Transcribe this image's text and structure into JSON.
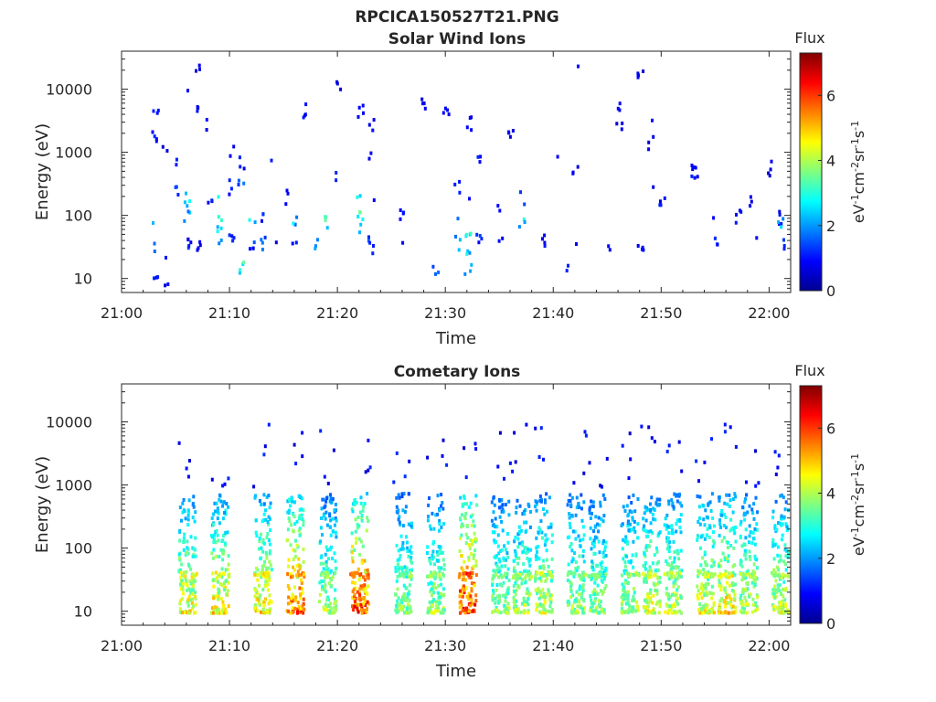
{
  "figure": {
    "title": "RPCICA150527T21.PNG"
  },
  "chart_data": [
    {
      "type": "heatmap",
      "title": "Solar Wind Ions",
      "xlabel": "Time",
      "ylabel": "Energy (eV)",
      "x_ticks": [
        "21:00",
        "21:10",
        "21:20",
        "21:30",
        "21:40",
        "21:50",
        "22:00"
      ],
      "y_ticks": [
        "10",
        "100",
        "1000",
        "10000"
      ],
      "yscale": "log",
      "xlim": [
        "21:00",
        "22:02"
      ],
      "ylim": [
        6,
        40000
      ],
      "colorbar": {
        "title": "Flux",
        "label": "eV-1cm-2sr-1s-1",
        "ticks": [
          "0",
          "2",
          "4",
          "6"
        ],
        "range": [
          0,
          7.3
        ]
      },
      "cells": [
        [
          "21:03",
          10,
          1.0
        ],
        [
          "21:04",
          7,
          0.8
        ],
        [
          "21:04",
          20,
          1.2
        ],
        [
          "21:03",
          30,
          1.5
        ],
        [
          "21:03",
          90,
          2.5
        ],
        [
          "21:03",
          5000,
          1.0
        ],
        [
          "21:03",
          2000,
          1.0
        ],
        [
          "21:04",
          1500,
          0.8
        ],
        [
          "21:05",
          800,
          1.0
        ],
        [
          "21:05",
          300,
          1.2
        ],
        [
          "21:06",
          8000,
          0.8
        ],
        [
          "21:06",
          30,
          1.5
        ],
        [
          "21:06",
          40,
          1.0
        ],
        [
          "21:06",
          200,
          2.5
        ],
        [
          "21:06",
          100,
          2.0
        ],
        [
          "21:07",
          20000,
          0.8
        ],
        [
          "21:07",
          6000,
          1.0
        ],
        [
          "21:07",
          40,
          0.8
        ],
        [
          "21:08",
          3000,
          1.0
        ],
        [
          "21:08",
          200,
          1.0
        ],
        [
          "21:09",
          200,
          2.5
        ],
        [
          "21:09",
          100,
          2.8
        ],
        [
          "21:09",
          60,
          3.0
        ],
        [
          "21:09",
          40,
          2.0
        ],
        [
          "21:10",
          300,
          1.0
        ],
        [
          "21:10",
          1000,
          1.0
        ],
        [
          "21:10",
          40,
          1.2
        ],
        [
          "21:11",
          300,
          1.5
        ],
        [
          "21:11",
          700,
          1.0
        ],
        [
          "21:11",
          16,
          3.2
        ],
        [
          "21:12",
          100,
          2.8
        ],
        [
          "21:12",
          40,
          1.5
        ],
        [
          "21:12",
          30,
          1.0
        ],
        [
          "21:13",
          40,
          1.5
        ],
        [
          "21:13",
          100,
          1.2
        ],
        [
          "21:14",
          40,
          0.8
        ],
        [
          "21:14",
          600,
          1.0
        ],
        [
          "21:15",
          200,
          0.8
        ],
        [
          "21:16",
          100,
          1.5
        ],
        [
          "21:16",
          60,
          3.0
        ],
        [
          "21:16",
          30,
          1.0
        ],
        [
          "21:17",
          5000,
          1.0
        ],
        [
          "21:18",
          40,
          2.5
        ],
        [
          "21:19",
          90,
          3.0
        ],
        [
          "21:20",
          14000,
          0.8
        ],
        [
          "21:20",
          500,
          1.0
        ],
        [
          "21:22",
          5000,
          1.0
        ],
        [
          "21:22",
          200,
          2.5
        ],
        [
          "21:22",
          100,
          3.0
        ],
        [
          "21:22",
          60,
          2.0
        ],
        [
          "21:23",
          40,
          1.5
        ],
        [
          "21:23",
          30,
          1.0
        ],
        [
          "21:23",
          200,
          1.0
        ],
        [
          "21:23",
          900,
          0.8
        ],
        [
          "21:23",
          3000,
          1.0
        ],
        [
          "21:26",
          100,
          1.0
        ],
        [
          "21:26",
          40,
          0.8
        ],
        [
          "21:28",
          7000,
          0.8
        ],
        [
          "21:29",
          14,
          1.5
        ],
        [
          "21:30",
          5000,
          1.0
        ],
        [
          "21:31",
          300,
          1.0
        ],
        [
          "21:31",
          100,
          1.5
        ],
        [
          "21:31",
          40,
          2.0
        ],
        [
          "21:32",
          60,
          3.0
        ],
        [
          "21:32",
          30,
          2.5
        ],
        [
          "21:32",
          14,
          2.0
        ],
        [
          "21:32",
          200,
          1.0
        ],
        [
          "21:32",
          3000,
          0.8
        ],
        [
          "21:33",
          800,
          1.0
        ],
        [
          "21:33",
          40,
          1.2
        ],
        [
          "21:35",
          40,
          1.0
        ],
        [
          "21:35",
          150,
          1.0
        ],
        [
          "21:36",
          2000,
          0.8
        ],
        [
          "21:37",
          200,
          1.2
        ],
        [
          "21:37",
          90,
          2.5
        ],
        [
          "21:39",
          40,
          1.0
        ],
        [
          "21:40",
          800,
          0.8
        ],
        [
          "21:41",
          14,
          1.0
        ],
        [
          "21:42",
          500,
          1.0
        ],
        [
          "21:42",
          28000,
          0.8
        ],
        [
          "21:42",
          40,
          1.0
        ],
        [
          "21:45",
          40,
          1.0
        ],
        [
          "21:46",
          6000,
          1.0
        ],
        [
          "21:46",
          3000,
          0.8
        ],
        [
          "21:48",
          40,
          1.0
        ],
        [
          "21:48",
          18000,
          0.8
        ],
        [
          "21:49",
          3000,
          1.0
        ],
        [
          "21:49",
          1500,
          0.8
        ],
        [
          "21:49",
          400,
          1.0
        ],
        [
          "21:50",
          150,
          1.2
        ],
        [
          "21:50",
          200,
          1.0
        ],
        [
          "21:53",
          500,
          1.0
        ],
        [
          "21:53",
          600,
          0.8
        ],
        [
          "21:55",
          40,
          1.5
        ],
        [
          "21:55",
          30,
          1.2
        ],
        [
          "21:55",
          100,
          1.0
        ],
        [
          "21:57",
          100,
          1.0
        ],
        [
          "21:58",
          200,
          0.8
        ],
        [
          "21:59",
          40,
          1.2
        ],
        [
          "22:00",
          600,
          0.8
        ],
        [
          "22:01",
          100,
          1.0
        ],
        [
          "22:01",
          40,
          1.5
        ],
        [
          "22:01",
          30,
          1.0
        ],
        [
          "22:01",
          80,
          2.5
        ],
        [
          "22:02",
          10,
          1.5
        ]
      ]
    },
    {
      "type": "heatmap",
      "title": "Cometary Ions",
      "xlabel": "Time",
      "ylabel": "Energy (eV)",
      "x_ticks": [
        "21:00",
        "21:10",
        "21:20",
        "21:30",
        "21:40",
        "21:50",
        "22:00"
      ],
      "y_ticks": [
        "10",
        "100",
        "1000",
        "10000"
      ],
      "yscale": "log",
      "xlim": [
        "21:00",
        "22:02"
      ],
      "ylim": [
        6,
        40000
      ],
      "colorbar": {
        "title": "Flux",
        "label": "eV-1cm-2sr-1s-1",
        "ticks": [
          "0",
          "2",
          "4",
          "6"
        ],
        "range": [
          0,
          7.3
        ]
      },
      "bursts": [
        {
          "t": "21:06",
          "intensity": 4.8
        },
        {
          "t": "21:09",
          "intensity": 5.0
        },
        {
          "t": "21:13",
          "intensity": 5.0
        },
        {
          "t": "21:16",
          "intensity": 6.0
        },
        {
          "t": "21:19",
          "intensity": 4.2
        },
        {
          "t": "21:22",
          "intensity": 6.3
        },
        {
          "t": "21:26",
          "intensity": 4.0
        },
        {
          "t": "21:29",
          "intensity": 4.2
        },
        {
          "t": "21:32",
          "intensity": 6.5
        },
        {
          "t": "21:35",
          "intensity": 4.0
        },
        {
          "t": "21:37",
          "intensity": 4.3
        },
        {
          "t": "21:39",
          "intensity": 4.5
        },
        {
          "t": "21:42",
          "intensity": 4.2
        },
        {
          "t": "21:44",
          "intensity": 4.0
        },
        {
          "t": "21:47",
          "intensity": 4.2
        },
        {
          "t": "21:49",
          "intensity": 4.6
        },
        {
          "t": "21:51",
          "intensity": 4.4
        },
        {
          "t": "21:54",
          "intensity": 4.7
        },
        {
          "t": "21:56",
          "intensity": 5.0
        },
        {
          "t": "21:58",
          "intensity": 4.4
        },
        {
          "t": "22:01",
          "intensity": 4.5
        }
      ]
    }
  ]
}
